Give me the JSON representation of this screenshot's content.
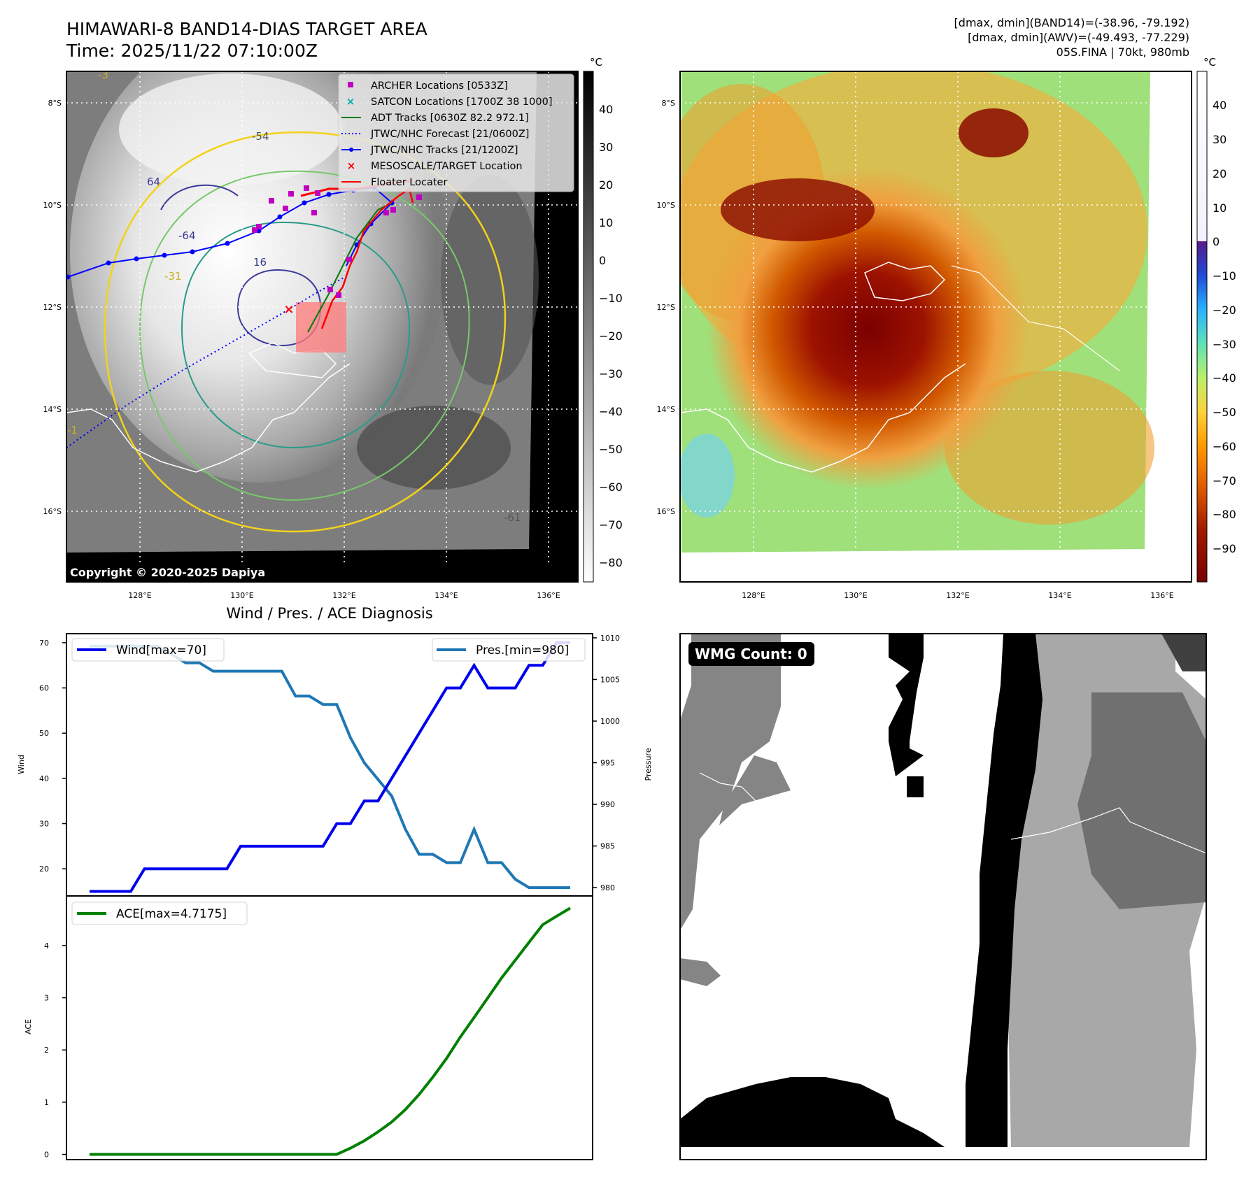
{
  "header": {
    "title": "HIMAWARI-8 BAND14-DIAS TARGET AREA",
    "time": "Time: 2025/11/22 07:10:00Z",
    "info_line1": "[dmax, dmin](BAND14)=(-38.96, -79.192)",
    "info_line2": "[dmax, dmin](AWV)=(-49.493, -77.229)",
    "info_line3": "05S.FINA | 70kt, 980mb"
  },
  "ir_panel": {
    "lat_labels": [
      "8°S",
      "10°S",
      "12°S",
      "14°S",
      "16°S"
    ],
    "lon_labels": [
      "128°E",
      "130°E",
      "132°E",
      "134°E",
      "136°E"
    ],
    "copyright": "Copyright © 2020-2025 Dapiya",
    "colorbar_unit": "°C",
    "colorbar_ticks": [
      "40",
      "30",
      "20",
      "10",
      "0",
      "−10",
      "−20",
      "−30",
      "−40",
      "−50",
      "−60",
      "−70",
      "−80"
    ],
    "contour_labels": [
      "-54",
      "64",
      "16",
      "-3",
      "-31",
      "-64",
      "-1",
      "-61"
    ],
    "legend": [
      {
        "label": "ARCHER Locations [0533Z]",
        "color": "#c000c0",
        "marker": "square"
      },
      {
        "label": "SATCON Locations [1700Z 38 1000]",
        "color": "#00b0b0",
        "marker": "x"
      },
      {
        "label": "ADT Tracks [0630Z 82.2 972.1]",
        "color": "#007a00",
        "marker": "line"
      },
      {
        "label": "JTWC/NHC Forecast [21/0600Z]",
        "color": "#0000ff",
        "marker": "dotted"
      },
      {
        "label": "JTWC/NHC Tracks [21/1200Z]",
        "color": "#0000ff",
        "marker": "line-dot"
      },
      {
        "label": "MESOSCALE/TARGET Location",
        "color": "#ff0000",
        "marker": "x"
      },
      {
        "label": "Floater Locater",
        "color": "#ff0000",
        "marker": "line"
      }
    ]
  },
  "awv_panel": {
    "lat_labels": [
      "8°S",
      "10°S",
      "12°S",
      "14°S",
      "16°S"
    ],
    "lon_labels": [
      "128°E",
      "130°E",
      "132°E",
      "134°E",
      "136°E"
    ],
    "colorbar_unit": "°C",
    "colorbar_ticks": [
      "40",
      "30",
      "20",
      "10",
      "0",
      "−10",
      "−20",
      "−30",
      "−40",
      "−50",
      "−60",
      "−70",
      "−80",
      "−90"
    ]
  },
  "wmg_panel": {
    "badge": "WMG Count: 0"
  },
  "chart_data": [
    {
      "type": "line",
      "title": "Wind / Pres. / ACE Diagnosis",
      "xlabel": "",
      "ylabel": "Wind",
      "ylabel_right": "Pressure",
      "ylim": [
        14,
        72
      ],
      "ylim_right": [
        979,
        1010.5
      ],
      "yticks": [
        20,
        30,
        40,
        50,
        60,
        70
      ],
      "yticks_right": [
        980,
        985,
        990,
        995,
        1000,
        1005,
        1010
      ],
      "x": [
        0,
        1,
        2,
        3,
        4,
        5,
        6,
        7,
        8,
        9,
        10,
        11,
        12,
        13,
        14,
        15,
        16,
        17,
        18,
        19,
        20,
        21,
        22,
        23,
        24,
        25,
        26,
        27,
        28,
        29,
        30,
        31,
        32,
        33,
        34,
        35
      ],
      "series": [
        {
          "name": "Wind[max=70]",
          "axis": "left",
          "color": "#0000ee",
          "values": [
            15,
            15,
            15,
            15,
            20,
            20,
            20,
            20,
            20,
            20,
            20,
            25,
            25,
            25,
            25,
            25,
            25,
            25,
            30,
            30,
            35,
            35,
            40,
            45,
            50,
            55,
            60,
            60,
            65,
            60,
            60,
            60,
            65,
            65,
            70,
            70
          ]
        },
        {
          "name": "Pres.[min=980]",
          "axis": "right",
          "color": "#1f77b4",
          "values": [
            1009,
            1009,
            1009,
            1009,
            1009,
            1009,
            1008,
            1007,
            1007,
            1006,
            1006,
            1006,
            1006,
            1006,
            1006,
            1003,
            1003,
            1002,
            1002,
            998,
            995,
            993,
            991,
            987,
            984,
            984,
            983,
            983,
            987,
            983,
            983,
            981,
            980,
            980,
            980,
            980
          ]
        }
      ]
    },
    {
      "type": "line",
      "ylabel": "ACE",
      "ylim": [
        -0.1,
        4.95
      ],
      "yticks": [
        0,
        1,
        2,
        3,
        4
      ],
      "x": [
        0,
        1,
        2,
        3,
        4,
        5,
        6,
        7,
        8,
        9,
        10,
        11,
        12,
        13,
        14,
        15,
        16,
        17,
        18,
        19,
        20,
        21,
        22,
        23,
        24,
        25,
        26,
        27,
        28,
        29,
        30,
        31,
        32,
        33,
        34,
        35
      ],
      "series": [
        {
          "name": "ACE[max=4.7175]",
          "color": "#008000",
          "values": [
            0,
            0,
            0,
            0,
            0,
            0,
            0,
            0,
            0,
            0,
            0,
            0,
            0,
            0,
            0,
            0,
            0,
            0,
            0,
            0.12,
            0.26,
            0.43,
            0.62,
            0.86,
            1.15,
            1.48,
            1.84,
            2.25,
            2.62,
            3.0,
            3.38,
            3.72,
            4.06,
            4.4,
            4.56,
            4.7175
          ]
        }
      ]
    }
  ]
}
